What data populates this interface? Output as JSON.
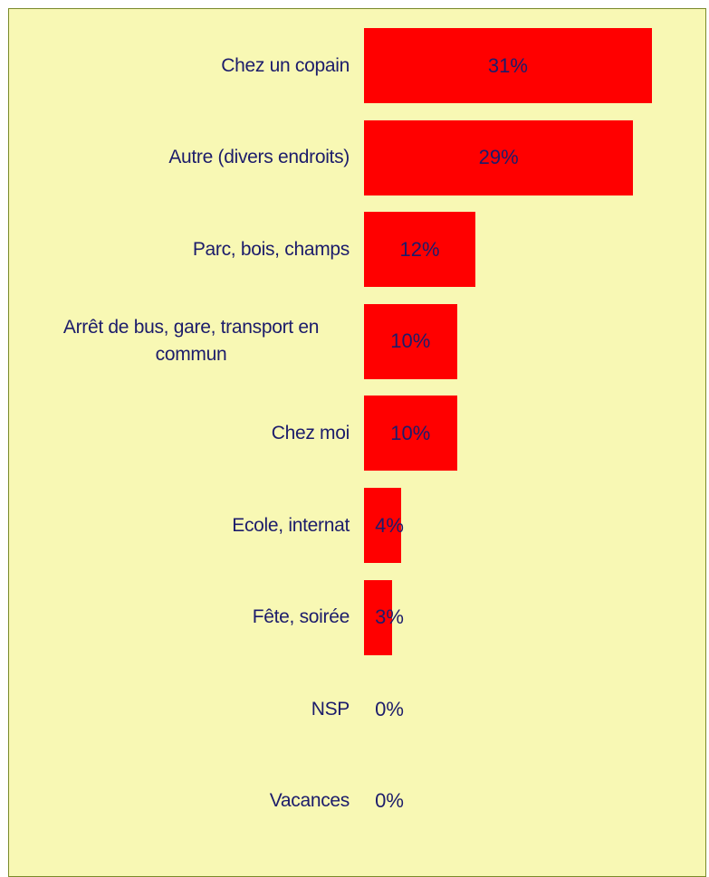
{
  "chart_data": {
    "type": "bar",
    "orientation": "horizontal",
    "categories": [
      "Chez un copain",
      "Autre (divers endroits)",
      "Parc, bois, champs",
      "Arrêt de bus, gare, transport en commun",
      "Chez moi",
      "Ecole, internat",
      "Fête, soirée",
      "NSP",
      "Vacances"
    ],
    "values": [
      31,
      29,
      12,
      10,
      10,
      4,
      3,
      0,
      0
    ],
    "value_labels": [
      "31%",
      "29%",
      "12%",
      "10%",
      "10%",
      "4%",
      "3%",
      "0%",
      "0%"
    ],
    "color": "#ff0000"
  }
}
